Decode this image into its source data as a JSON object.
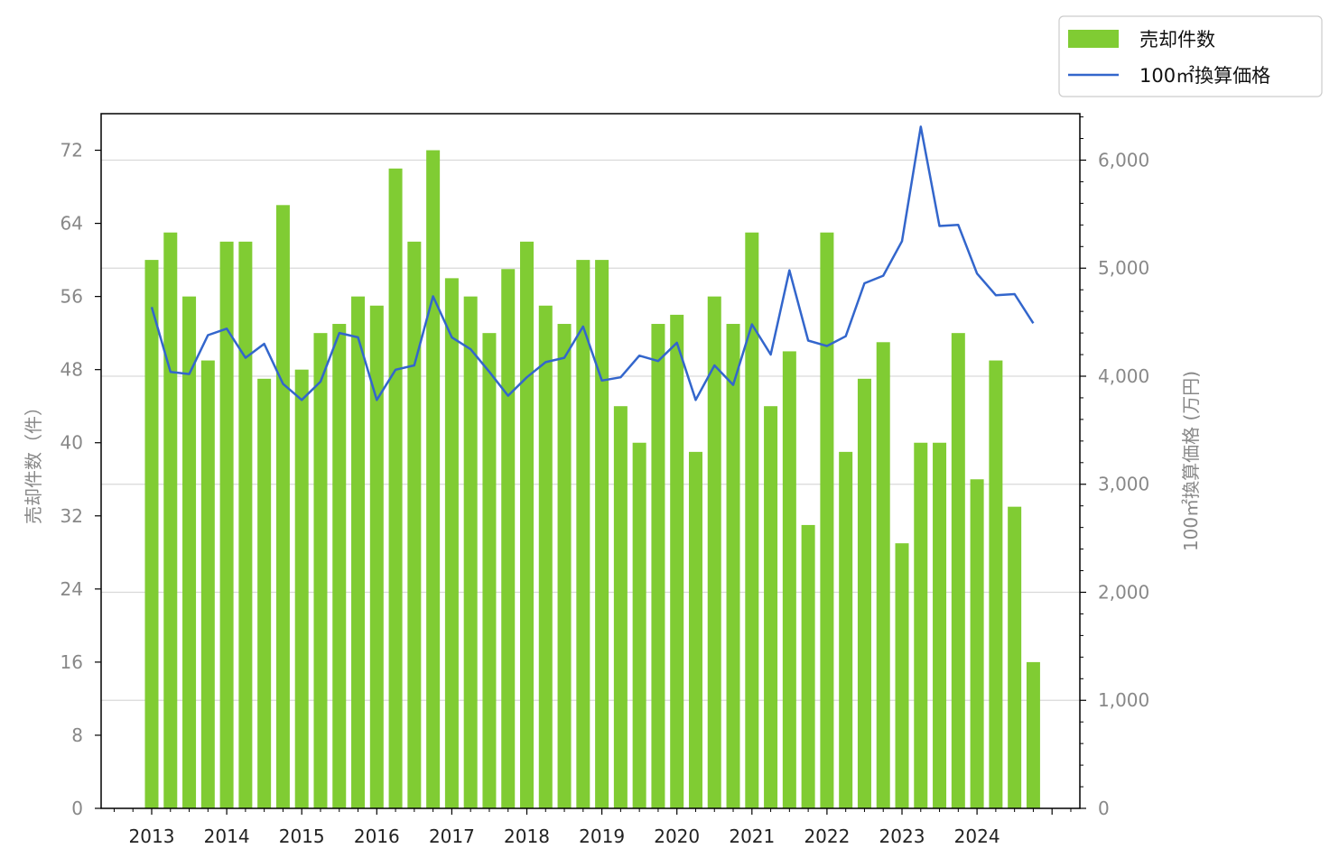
{
  "chart_data": {
    "type": "bar",
    "x_tick_labels": [
      "2013",
      "2014",
      "2015",
      "2016",
      "2017",
      "2018",
      "2019",
      "2020",
      "2021",
      "2022",
      "2023",
      "2024"
    ],
    "ylabel_left": "売却件数（件）",
    "ylabel_right": "100㎡換算価格 (万円)",
    "ylim_left": [
      0,
      76
    ],
    "ylim_right": [
      0,
      6430
    ],
    "left_ticks": [
      0,
      8,
      16,
      24,
      32,
      40,
      48,
      56,
      64,
      72
    ],
    "right_ticks": [
      0,
      1000,
      2000,
      3000,
      4000,
      5000,
      6000
    ],
    "right_tick_labels": [
      "0",
      "1,000",
      "2,000",
      "3,000",
      "4,000",
      "5,000",
      "6,000"
    ],
    "grid": "horizontal, right axis",
    "legend_position": "top-right",
    "series": [
      {
        "name": "売却件数",
        "type": "bar",
        "axis": "left",
        "color": "#80cc33",
        "x": [
          2013.0,
          2013.25,
          2013.5,
          2013.75,
          2014.0,
          2014.25,
          2014.5,
          2014.75,
          2015.0,
          2015.25,
          2015.5,
          2015.75,
          2016.0,
          2016.25,
          2016.5,
          2016.75,
          2017.0,
          2017.25,
          2017.5,
          2017.75,
          2018.0,
          2018.25,
          2018.5,
          2018.75,
          2019.0,
          2019.25,
          2019.5,
          2019.75,
          2020.0,
          2020.25,
          2020.5,
          2020.75,
          2021.0,
          2021.25,
          2021.5,
          2021.75,
          2022.0,
          2022.25,
          2022.5,
          2022.75,
          2023.0,
          2023.25,
          2023.5,
          2023.75,
          2024.0,
          2024.25,
          2024.5,
          2024.75
        ],
        "values": [
          60,
          63,
          56,
          49,
          62,
          62,
          47,
          66,
          48,
          52,
          53,
          56,
          55,
          70,
          62,
          72,
          58,
          56,
          52,
          59,
          62,
          55,
          53,
          60,
          60,
          44,
          40,
          53,
          54,
          39,
          56,
          53,
          63,
          44,
          50,
          31,
          63,
          39,
          47,
          51,
          29,
          40,
          40,
          52,
          36,
          49,
          33,
          16
        ]
      },
      {
        "name": "100㎡換算価格",
        "type": "line",
        "axis": "right",
        "color": "#3366cc",
        "x": [
          2013.0,
          2013.25,
          2013.5,
          2013.75,
          2014.0,
          2014.25,
          2014.5,
          2014.75,
          2015.0,
          2015.25,
          2015.5,
          2015.75,
          2016.0,
          2016.25,
          2016.5,
          2016.75,
          2017.0,
          2017.25,
          2017.5,
          2017.75,
          2018.0,
          2018.25,
          2018.5,
          2018.75,
          2019.0,
          2019.25,
          2019.5,
          2019.75,
          2020.0,
          2020.25,
          2020.5,
          2020.75,
          2021.0,
          2021.25,
          2021.5,
          2021.75,
          2022.0,
          2022.25,
          2022.5,
          2022.75,
          2023.0,
          2023.25,
          2023.5,
          2023.75,
          2024.0,
          2024.25,
          2024.5,
          2024.75
        ],
        "values": [
          4640,
          4040,
          4020,
          4380,
          4440,
          4170,
          4300,
          3930,
          3780,
          3950,
          4400,
          4360,
          3780,
          4060,
          4100,
          4740,
          4360,
          4250,
          4040,
          3820,
          3990,
          4130,
          4170,
          4460,
          3960,
          3990,
          4190,
          4140,
          4310,
          3780,
          4100,
          3920,
          4480,
          4200,
          4980,
          4330,
          4280,
          4370,
          4860,
          4930,
          5250,
          6310,
          5390,
          5400,
          4950,
          4750,
          4760,
          4490
        ]
      }
    ]
  }
}
